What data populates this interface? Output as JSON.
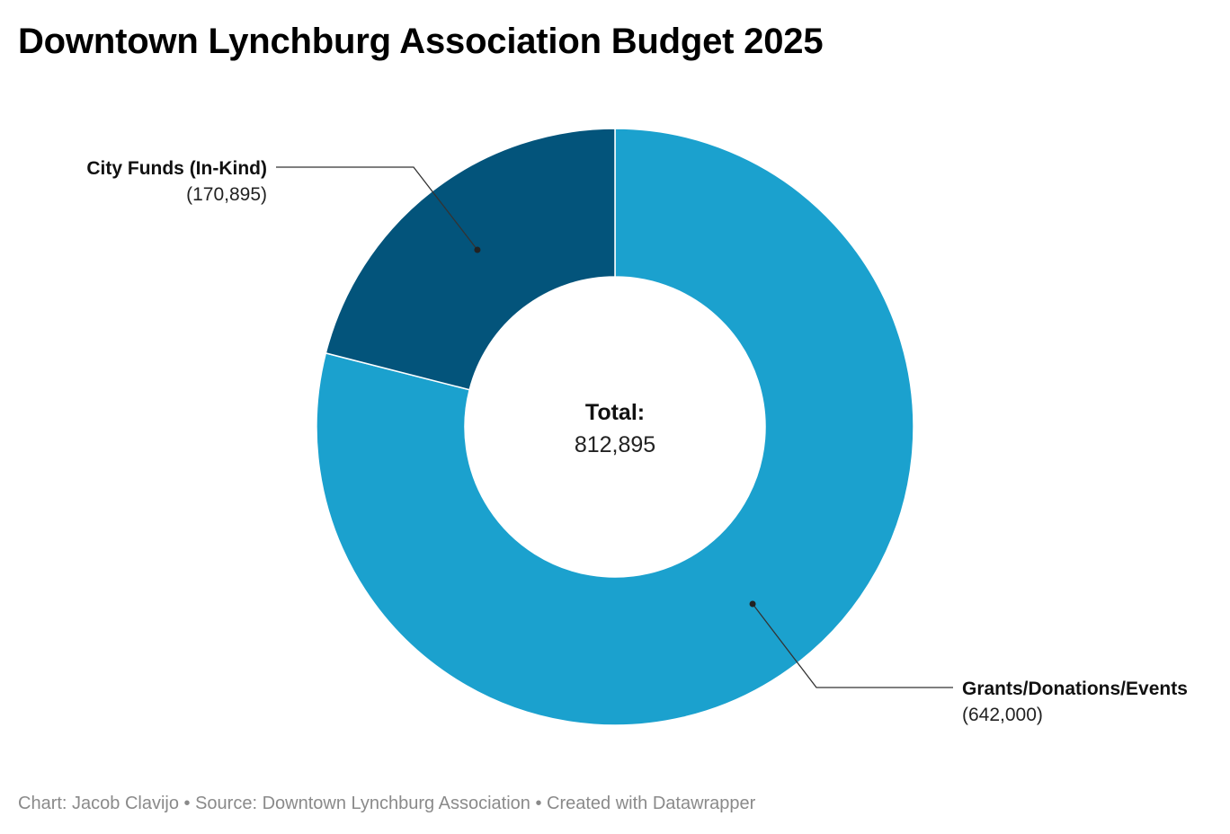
{
  "header": {
    "title": "Downtown Lynchburg Association Budget 2025"
  },
  "chart_data": {
    "type": "pie",
    "variant": "donut",
    "title": "Downtown Lynchburg Association Budget 2025",
    "categories": [
      "Grants/Donations/Events",
      "City Funds (In-Kind)"
    ],
    "values": [
      642000,
      170895
    ],
    "value_labels": [
      "(642,000)",
      "(170,895)"
    ],
    "colors": [
      "#1ba1ce",
      "#03547b"
    ],
    "center": {
      "label": "Total:",
      "value": "812,895"
    },
    "legend": "none"
  },
  "footer": {
    "credits": "Chart: Jacob Clavijo • Source: Downtown Lynchburg Association • Created with Datawrapper"
  }
}
